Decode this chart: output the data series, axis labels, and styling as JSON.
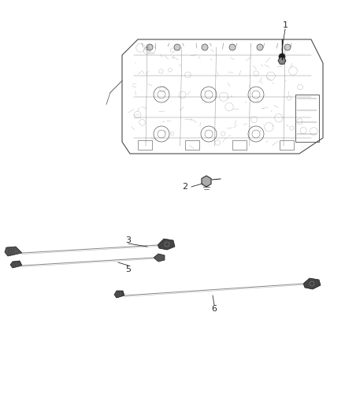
{
  "background_color": "#ffffff",
  "fig_width": 4.38,
  "fig_height": 5.33,
  "dpi": 100,
  "label_color": "#2a2a2a",
  "draw_color": "#4a4a4a",
  "dark_color": "#1a1a1a"
}
